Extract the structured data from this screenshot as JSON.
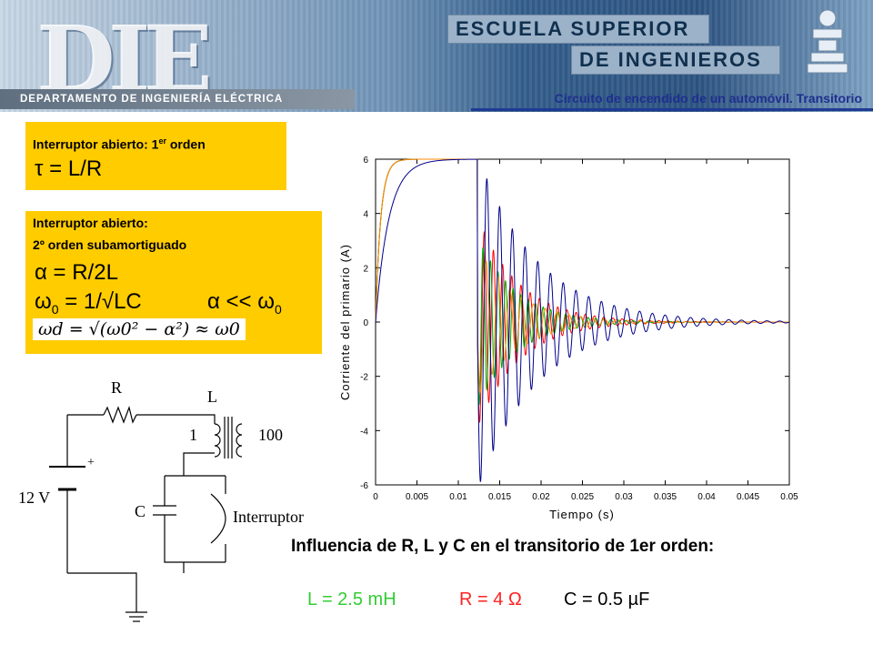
{
  "header": {
    "logo_text": "DIE",
    "school_line1": "ESCUELA SUPERIOR",
    "school_line2": "DE INGENIEROS",
    "department": "DEPARTAMENTO DE INGENIERÍA ELÉCTRICA",
    "slide_title": "Circuito de encendido  de un automóvil.  Transitorio"
  },
  "box1": {
    "label": "Interruptor abierto: 1",
    "label_sup": "er",
    "label_end": " orden",
    "equation": "τ = L/R"
  },
  "box2": {
    "label_line1": "Interruptor abierto:",
    "label_line2": "2º orden subamortiguado",
    "eq_alpha": "α = R/2L",
    "eq_omega0": "ω",
    "eq_omega0_sub": "0",
    "eq_omega0_rest": " = 1/√LC",
    "eq_cond": "α << ω",
    "eq_cond_sub": "0",
    "eq_damped": "ωd = √(ω0² − α²) ≈ ω0"
  },
  "circuit": {
    "R": "R",
    "L": "L",
    "turns_primary": "1",
    "turns_secondary": "100",
    "source": "12 V",
    "plus": "+",
    "C": "C",
    "switch": "Interruptor"
  },
  "chart_data": {
    "type": "line",
    "xlabel": "Tiempo (s)",
    "ylabel": "Corriente del primario (A)",
    "xlim": [
      0,
      0.05
    ],
    "ylim": [
      -6,
      6
    ],
    "xticks": [
      "0",
      "0.005",
      "0.01",
      "0.015",
      "0.02",
      "0.025",
      "0.03",
      "0.035",
      "0.04",
      "0.045",
      "0.05"
    ],
    "yticks": [
      "6",
      "4",
      "2",
      "0",
      "-2",
      "-4",
      "-6"
    ],
    "switch_time": 0.0123,
    "series": [
      {
        "color": "#ff0000",
        "tau": 0.000625,
        "steady": 6.0,
        "f_osc": 900,
        "decay": 200,
        "amp": 3.9
      },
      {
        "color": "#00aa00",
        "tau": 0.000625,
        "steady": 6.0,
        "f_osc": 1100,
        "decay": 220,
        "amp": 3.2
      },
      {
        "color": "#ff8800",
        "tau": 0.000625,
        "steady": 6.0,
        "f_osc": 700,
        "decay": 210,
        "amp": 2.8
      },
      {
        "color": "#00008b",
        "tau": 0.0016,
        "steady": 6.0,
        "f_osc": 650,
        "decay": 140,
        "amp": 6.2
      }
    ]
  },
  "bottom": {
    "influence": "Influencia de R, L y C en el transitorio de 1er orden:",
    "param_L": "L = 2.5 mH",
    "param_R": "R = 4 Ω",
    "param_C": "C = 0.5 µF",
    "color_L": "#33cc33",
    "color_R": "#ff2222",
    "color_C": "#000000"
  }
}
